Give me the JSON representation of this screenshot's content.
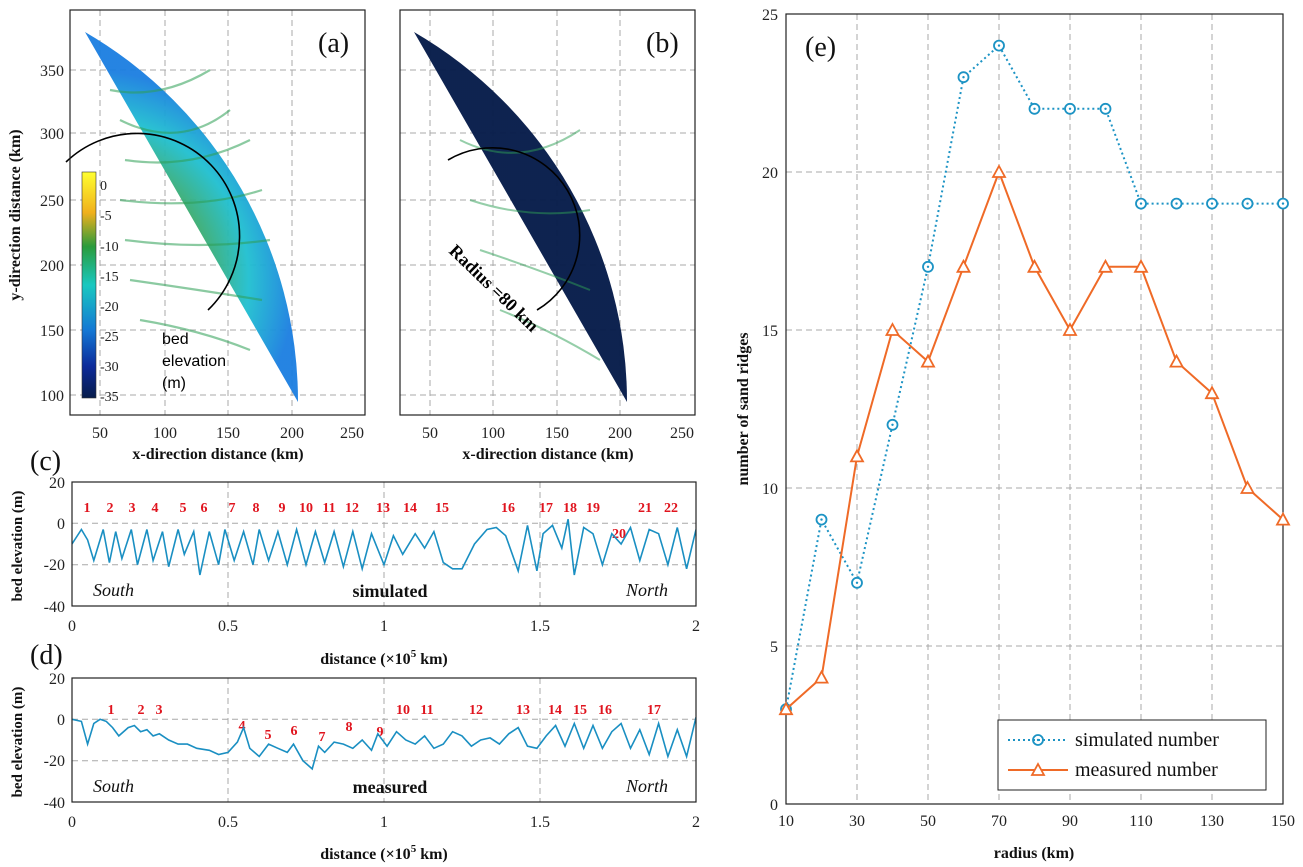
{
  "panels": {
    "a": {
      "label": "(a)",
      "xlabel": "x-direction distance (km)",
      "ylabel": "y-direction distance (km)",
      "xticks": [
        "50",
        "100",
        "150",
        "200",
        "250"
      ],
      "yticks": [
        "100",
        "150",
        "200",
        "250",
        "300",
        "350"
      ],
      "colorbar": {
        "ticks": [
          "0",
          "-5",
          "-10",
          "-15",
          "-20",
          "-25",
          "-30",
          "-35"
        ],
        "title": [
          "bed",
          "elevation",
          "(m)"
        ],
        "colors": [
          "#ffff30",
          "#f0b01c",
          "#2a9b3c",
          "#19c8c0",
          "#1478d4",
          "#0c2a9a",
          "#071c4a"
        ]
      }
    },
    "b": {
      "label": "(b)",
      "xlabel": "x-direction distance (km)",
      "xticks": [
        "50",
        "100",
        "150",
        "200",
        "250"
      ],
      "radius_label": "Radius =80 km"
    },
    "c": {
      "label": "(c)",
      "xlabel": "distance (×10",
      "xlabel_sup": "5",
      "xlabel_tail": " km)",
      "ylabel": "bed elevation (m)",
      "yticks": [
        "20",
        "0",
        "-20",
        "-40"
      ],
      "xticks": [
        "0",
        "0.5",
        "1",
        "1.5",
        "2"
      ],
      "left_text": "South",
      "right_text": "North",
      "center_text": "simulated",
      "ridge_numbers": [
        "1",
        "2",
        "3",
        "4",
        "5",
        "6",
        "7",
        "8",
        "9",
        "10",
        "11",
        "12",
        "13",
        "14",
        "15",
        "16",
        "17",
        "18",
        "19",
        "20",
        "21",
        "22"
      ]
    },
    "d": {
      "label": "(d)",
      "xlabel": "distance (×10",
      "xlabel_sup": "5",
      "xlabel_tail": " km)",
      "ylabel": "bed elevation (m)",
      "yticks": [
        "20",
        "0",
        "-20",
        "-40"
      ],
      "xticks": [
        "0",
        "0.5",
        "1",
        "1.5",
        "2"
      ],
      "left_text": "South",
      "right_text": "North",
      "center_text": "measured",
      "ridge_numbers": [
        "1",
        "2",
        "3",
        "4",
        "5",
        "6",
        "7",
        "8",
        "9",
        "10",
        "11",
        "12",
        "13",
        "14",
        "15",
        "16",
        "17"
      ]
    },
    "e": {
      "label": "(e)"
    }
  },
  "chart_data": [
    {
      "type": "line",
      "panel": "c",
      "xlim": [
        0,
        2
      ],
      "ylim": [
        -40,
        20
      ],
      "x": [
        0,
        0.03,
        0.05,
        0.07,
        0.1,
        0.12,
        0.14,
        0.16,
        0.19,
        0.21,
        0.24,
        0.26,
        0.29,
        0.31,
        0.34,
        0.36,
        0.39,
        0.41,
        0.44,
        0.47,
        0.49,
        0.52,
        0.55,
        0.58,
        0.6,
        0.63,
        0.66,
        0.69,
        0.72,
        0.75,
        0.78,
        0.81,
        0.84,
        0.87,
        0.9,
        0.93,
        0.96,
        1.0,
        1.03,
        1.06,
        1.1,
        1.13,
        1.16,
        1.19,
        1.22,
        1.25,
        1.29,
        1.33,
        1.36,
        1.39,
        1.43,
        1.46,
        1.49,
        1.51,
        1.54,
        1.57,
        1.59,
        1.61,
        1.64,
        1.67,
        1.7,
        1.73,
        1.76,
        1.79,
        1.82,
        1.85,
        1.88,
        1.91,
        1.94,
        1.97,
        2.0
      ],
      "y": [
        -10,
        -3,
        -8,
        -18,
        -3,
        -19,
        -4,
        -17,
        -3,
        -20,
        -3,
        -18,
        -4,
        -21,
        -3,
        -15,
        -4,
        -25,
        -4,
        -20,
        -3,
        -18,
        -4,
        -20,
        -3,
        -18,
        -4,
        -20,
        -3,
        -20,
        -4,
        -19,
        -4,
        -21,
        -4,
        -22,
        -5,
        -20,
        -6,
        -15,
        -5,
        -12,
        -4,
        -19,
        -22,
        -22,
        -10,
        -3,
        -2,
        -6,
        -23,
        -1,
        -23,
        -5,
        -1,
        -12,
        2,
        -25,
        -2,
        -5,
        -20,
        -5,
        -10,
        -2,
        -18,
        -3,
        -5,
        -20,
        -2,
        -22,
        -3
      ],
      "title": "simulated"
    },
    {
      "type": "line",
      "panel": "d",
      "xlim": [
        0,
        2
      ],
      "ylim": [
        -40,
        20
      ],
      "x": [
        0,
        0.03,
        0.05,
        0.07,
        0.09,
        0.11,
        0.13,
        0.15,
        0.18,
        0.2,
        0.22,
        0.24,
        0.26,
        0.28,
        0.31,
        0.34,
        0.37,
        0.4,
        0.44,
        0.47,
        0.5,
        0.53,
        0.55,
        0.57,
        0.6,
        0.63,
        0.66,
        0.69,
        0.71,
        0.74,
        0.77,
        0.79,
        0.81,
        0.84,
        0.87,
        0.9,
        0.93,
        0.96,
        0.98,
        1.01,
        1.04,
        1.07,
        1.1,
        1.13,
        1.16,
        1.19,
        1.22,
        1.25,
        1.28,
        1.31,
        1.34,
        1.37,
        1.4,
        1.43,
        1.46,
        1.49,
        1.52,
        1.55,
        1.58,
        1.61,
        1.64,
        1.67,
        1.7,
        1.73,
        1.76,
        1.79,
        1.82,
        1.85,
        1.88,
        1.91,
        1.94,
        1.97,
        2.0
      ],
      "y": [
        0,
        -1,
        -12,
        -2,
        0,
        -1,
        -4,
        -8,
        -4,
        -3,
        -6,
        -5,
        -8,
        -7,
        -10,
        -12,
        -12,
        -14,
        -15,
        -17,
        -16,
        -11,
        -4,
        -14,
        -18,
        -12,
        -14,
        -16,
        -12,
        -20,
        -24,
        -13,
        -16,
        -11,
        -12,
        -14,
        -10,
        -15,
        -7,
        -13,
        -6,
        -10,
        -12,
        -8,
        -14,
        -12,
        -6,
        -8,
        -13,
        -10,
        -9,
        -12,
        -7,
        -4,
        -13,
        -14,
        -8,
        -3,
        -13,
        -2,
        -14,
        -3,
        -14,
        -6,
        -2,
        -14,
        -5,
        -17,
        -2,
        -18,
        -5,
        -18,
        1
      ],
      "title": "measured"
    },
    {
      "type": "line",
      "panel": "e",
      "xlabel": "radius (km)",
      "ylabel": "number of sand ridges",
      "xlim": [
        10,
        150
      ],
      "ylim": [
        0,
        25
      ],
      "xticks": [
        10,
        30,
        50,
        70,
        90,
        110,
        130,
        150
      ],
      "yticks": [
        0,
        5,
        10,
        15,
        20,
        25
      ],
      "grid": true,
      "legend_position": "bottom-right",
      "series": [
        {
          "name": "simulated number",
          "color": "#1c93c4",
          "marker": "circle",
          "line": "dotted",
          "x": [
            10,
            20,
            30,
            40,
            50,
            60,
            70,
            80,
            90,
            100,
            110,
            120,
            130,
            140,
            150
          ],
          "values": [
            3,
            9,
            7,
            12,
            17,
            23,
            24,
            22,
            22,
            22,
            19,
            19,
            19,
            19,
            19
          ]
        },
        {
          "name": "measured number",
          "color": "#ef6a27",
          "marker": "triangle",
          "line": "solid",
          "x": [
            10,
            20,
            30,
            40,
            50,
            60,
            70,
            80,
            90,
            100,
            110,
            120,
            130,
            140,
            150
          ],
          "values": [
            3,
            4,
            11,
            15,
            14,
            17,
            20,
            17,
            15,
            17,
            17,
            14,
            13,
            10,
            9
          ]
        }
      ]
    }
  ]
}
